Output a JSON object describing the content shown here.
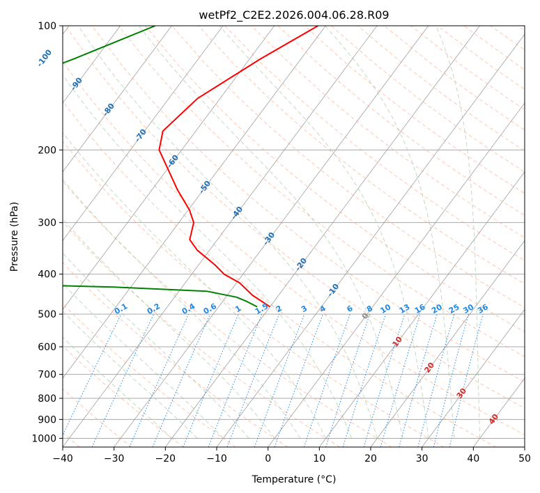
{
  "chart_data": {
    "type": "skew-t",
    "title": "wetPf2_C2E2.2026.004.06.28.R09",
    "xlabel": "Temperature (°C)",
    "ylabel": "Pressure (hPa)",
    "xlim": [
      -40,
      50
    ],
    "ylim": [
      1050,
      100
    ],
    "x_ticks": [
      -40,
      -30,
      -20,
      -10,
      0,
      10,
      20,
      30,
      40,
      50
    ],
    "y_ticks": [
      100,
      200,
      300,
      400,
      500,
      600,
      700,
      800,
      900,
      1000
    ],
    "colors": {
      "temperature": "#ff0000",
      "dewpoint": "#008000",
      "isotherm": "#888888",
      "dry_adiabat": "#ffa07a",
      "moist_adiabat": "#8fbc8f",
      "mixing_ratio": "#1e88e5",
      "isotherm_label_cold": "#1f6fb4",
      "isotherm_label_warm": "#d62728"
    },
    "series": [
      {
        "name": "temperature",
        "points": [
          {
            "p": 100,
            "t": -51.5
          },
          {
            "p": 120,
            "t": -57.8
          },
          {
            "p": 150,
            "t": -64.4
          },
          {
            "p": 180,
            "t": -66.4
          },
          {
            "p": 200,
            "t": -64.4
          },
          {
            "p": 250,
            "t": -55.0
          },
          {
            "p": 280,
            "t": -49.7
          },
          {
            "p": 300,
            "t": -47.1
          },
          {
            "p": 330,
            "t": -45.4
          },
          {
            "p": 350,
            "t": -42.4
          },
          {
            "p": 380,
            "t": -36.8
          },
          {
            "p": 400,
            "t": -33.7
          },
          {
            "p": 420,
            "t": -29.4
          },
          {
            "p": 450,
            "t": -25.1
          },
          {
            "p": 480,
            "t": -20.0
          }
        ]
      },
      {
        "name": "dewpoint",
        "points": [
          {
            "p": 100,
            "t": -83.2
          },
          {
            "p": 120,
            "t": -94.1
          },
          {
            "p": 130,
            "t": -99.3
          },
          {
            "p": 145,
            "t": -106.4
          },
          {
            "p": 150,
            "t": -113.2
          },
          {
            "p": 160,
            "t": -112.8
          },
          {
            "p": 180,
            "t": -110.5
          },
          {
            "p": 200,
            "t": -108.7
          },
          {
            "p": 230,
            "t": -105.4
          },
          {
            "p": 250,
            "t": -104.2
          },
          {
            "p": 270,
            "t": -104.3
          },
          {
            "p": 290,
            "t": -105.9
          },
          {
            "p": 410,
            "t": -87.5
          },
          {
            "p": 420,
            "t": -81.7
          },
          {
            "p": 425,
            "t": -69.0
          },
          {
            "p": 430,
            "t": -53.3
          },
          {
            "p": 440,
            "t": -34.6
          },
          {
            "p": 455,
            "t": -27.9
          },
          {
            "p": 465,
            "t": -25.5
          },
          {
            "p": 480,
            "t": -22.5
          }
        ]
      }
    ],
    "isotherm_labels": [
      "-100",
      "-90",
      "-80",
      "-70",
      "-60",
      "-50",
      "-40",
      "-30",
      "-20",
      "-10",
      "0",
      "10",
      "20",
      "30",
      "40"
    ],
    "mixing_ratio_labels": [
      "0.1",
      "0.2",
      "0.4",
      "0.6",
      "1",
      "1.5",
      "2",
      "3",
      "4",
      "6",
      "8",
      "10",
      "13",
      "16",
      "20",
      "25",
      "30",
      "36"
    ]
  }
}
